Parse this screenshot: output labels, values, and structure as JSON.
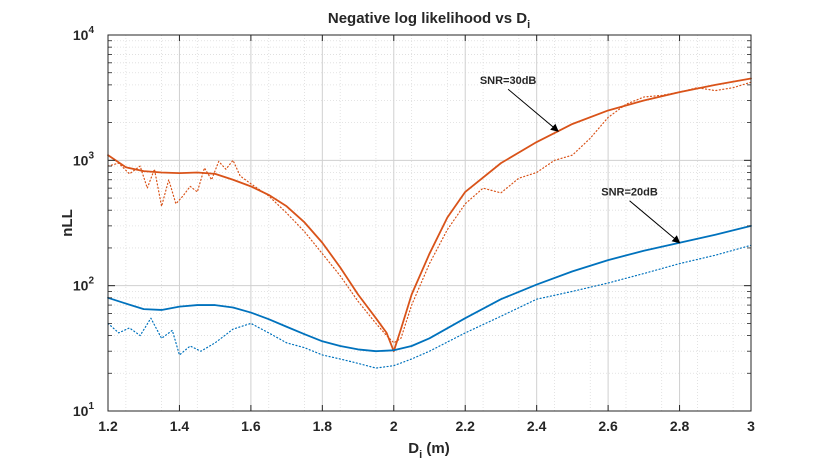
{
  "chart_data": {
    "type": "line",
    "title": "Negative log likelihood vs D",
    "title_sub": "i",
    "xlabel_main": "D",
    "xlabel_sub": "i",
    "xlabel_suffix": " (m)",
    "ylabel": "nLL",
    "xlim": [
      1.2,
      3.0
    ],
    "ylim": [
      10,
      10000
    ],
    "yscale": "log",
    "grid": true,
    "minor_grid": true,
    "xticks": [
      1.2,
      1.4,
      1.6,
      1.8,
      2.0,
      2.2,
      2.4,
      2.6,
      2.8,
      3.0
    ],
    "xtick_labels": [
      "1.2",
      "1.4",
      "1.6",
      "1.8",
      "2",
      "2.2",
      "2.4",
      "2.6",
      "2.8",
      "3"
    ],
    "yticks": [
      {
        "base": "10",
        "exp": "1"
      },
      {
        "base": "10",
        "exp": "2"
      },
      {
        "base": "10",
        "exp": "3"
      },
      {
        "base": "10",
        "exp": "4"
      }
    ],
    "colors": {
      "snr30": "#D95319",
      "snr20": "#0072BD"
    },
    "series": [
      {
        "name": "SNR=30dB solid",
        "color": "#D95319",
        "style": "solid",
        "x": [
          1.2,
          1.25,
          1.3,
          1.35,
          1.4,
          1.45,
          1.5,
          1.55,
          1.6,
          1.65,
          1.7,
          1.75,
          1.8,
          1.85,
          1.9,
          1.95,
          1.98,
          2.0,
          2.02,
          2.05,
          2.1,
          2.15,
          2.2,
          2.3,
          2.4,
          2.5,
          2.6,
          2.7,
          2.8,
          2.9,
          3.0
        ],
        "y": [
          1100,
          880,
          820,
          800,
          790,
          800,
          780,
          700,
          620,
          530,
          430,
          320,
          220,
          140,
          85,
          55,
          42,
          30,
          45,
          85,
          180,
          350,
          560,
          950,
          1400,
          1950,
          2500,
          3000,
          3500,
          4000,
          4500
        ]
      },
      {
        "name": "SNR=30dB dotted",
        "color": "#D95319",
        "style": "dotted",
        "x": [
          1.2,
          1.23,
          1.26,
          1.29,
          1.31,
          1.33,
          1.35,
          1.37,
          1.39,
          1.41,
          1.43,
          1.45,
          1.47,
          1.49,
          1.51,
          1.53,
          1.55,
          1.57,
          1.6,
          1.65,
          1.7,
          1.75,
          1.8,
          1.85,
          1.9,
          1.95,
          1.98,
          2.0,
          2.02,
          2.05,
          2.1,
          2.15,
          2.2,
          2.25,
          2.3,
          2.35,
          2.4,
          2.45,
          2.5,
          2.55,
          2.6,
          2.65,
          2.7,
          2.75,
          2.8,
          2.85,
          2.9,
          2.95,
          3.0
        ],
        "y": [
          900,
          950,
          780,
          900,
          600,
          850,
          430,
          700,
          450,
          520,
          620,
          560,
          870,
          700,
          980,
          850,
          1000,
          750,
          650,
          520,
          380,
          270,
          180,
          120,
          75,
          50,
          40,
          35,
          38,
          70,
          150,
          280,
          450,
          600,
          550,
          720,
          800,
          1000,
          1100,
          1500,
          2200,
          2800,
          3200,
          3300,
          3500,
          3800,
          3600,
          3800,
          4200
        ]
      },
      {
        "name": "SNR=20dB solid",
        "color": "#0072BD",
        "style": "solid",
        "x": [
          1.2,
          1.25,
          1.3,
          1.35,
          1.4,
          1.45,
          1.5,
          1.55,
          1.6,
          1.65,
          1.7,
          1.75,
          1.8,
          1.85,
          1.9,
          1.95,
          2.0,
          2.05,
          2.1,
          2.2,
          2.3,
          2.4,
          2.5,
          2.6,
          2.7,
          2.8,
          2.9,
          3.0
        ],
        "y": [
          80,
          72,
          65,
          64,
          68,
          70,
          70,
          67,
          61,
          54,
          47,
          41,
          36,
          33,
          31,
          30,
          30.5,
          33,
          38,
          55,
          78,
          102,
          130,
          160,
          190,
          220,
          255,
          300
        ]
      },
      {
        "name": "SNR=20dB dotted",
        "color": "#0072BD",
        "style": "dotted",
        "x": [
          1.2,
          1.23,
          1.26,
          1.29,
          1.32,
          1.35,
          1.38,
          1.4,
          1.43,
          1.46,
          1.5,
          1.55,
          1.6,
          1.65,
          1.7,
          1.75,
          1.8,
          1.85,
          1.9,
          1.95,
          2.0,
          2.05,
          2.1,
          2.2,
          2.3,
          2.4,
          2.5,
          2.6,
          2.7,
          2.8,
          2.9,
          3.0
        ],
        "y": [
          50,
          42,
          46,
          40,
          55,
          38,
          44,
          28,
          33,
          30,
          35,
          45,
          50,
          42,
          35,
          32,
          28,
          26,
          24,
          22,
          23,
          26,
          30,
          42,
          57,
          78,
          90,
          105,
          125,
          150,
          175,
          210
        ]
      }
    ],
    "annotations": [
      {
        "text": "SNR=30dB",
        "series": "SNR=30dB solid",
        "target_x": 2.46
      },
      {
        "text": "SNR=20dB",
        "series": "SNR=20dB solid",
        "target_x": 2.8
      }
    ]
  }
}
